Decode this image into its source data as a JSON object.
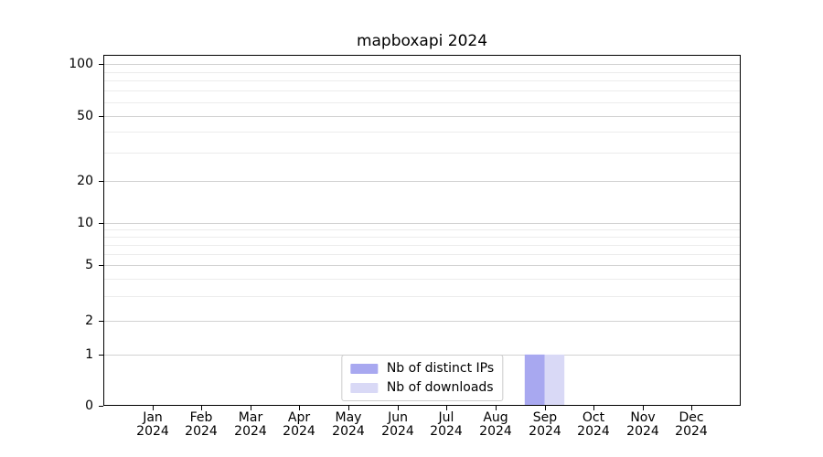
{
  "chart_data": {
    "type": "bar",
    "title": "mapboxapi 2024",
    "categories": [
      "Jan",
      "Feb",
      "Mar",
      "Apr",
      "May",
      "Jun",
      "Jul",
      "Aug",
      "Sep",
      "Oct",
      "Nov",
      "Dec"
    ],
    "category_year": "2024",
    "series": [
      {
        "name": "Nb of distinct IPs",
        "color": "#a8a8f0",
        "values": [
          0,
          0,
          0,
          0,
          0,
          0,
          0,
          0,
          1,
          0,
          0,
          0
        ]
      },
      {
        "name": "Nb of downloads",
        "color": "#d9d9f6",
        "values": [
          0,
          0,
          0,
          0,
          0,
          0,
          0,
          0,
          1,
          0,
          0,
          0
        ]
      }
    ],
    "xlabel": "",
    "ylabel": "",
    "yscale": "symlog",
    "ylim": [
      0,
      112
    ],
    "yticks": [
      0,
      1,
      2,
      5,
      10,
      20,
      50,
      100
    ],
    "yminorticks": [
      3,
      4,
      6,
      7,
      8,
      9,
      30,
      40,
      60,
      70,
      80,
      90
    ],
    "grid": "horizontal",
    "legend_position": "lower center inside plot",
    "colors": {
      "major_grid": "#d2d2d2",
      "minor_grid": "#ececec",
      "spine": "#000000",
      "text": "#000000",
      "background": "#ffffff"
    }
  }
}
